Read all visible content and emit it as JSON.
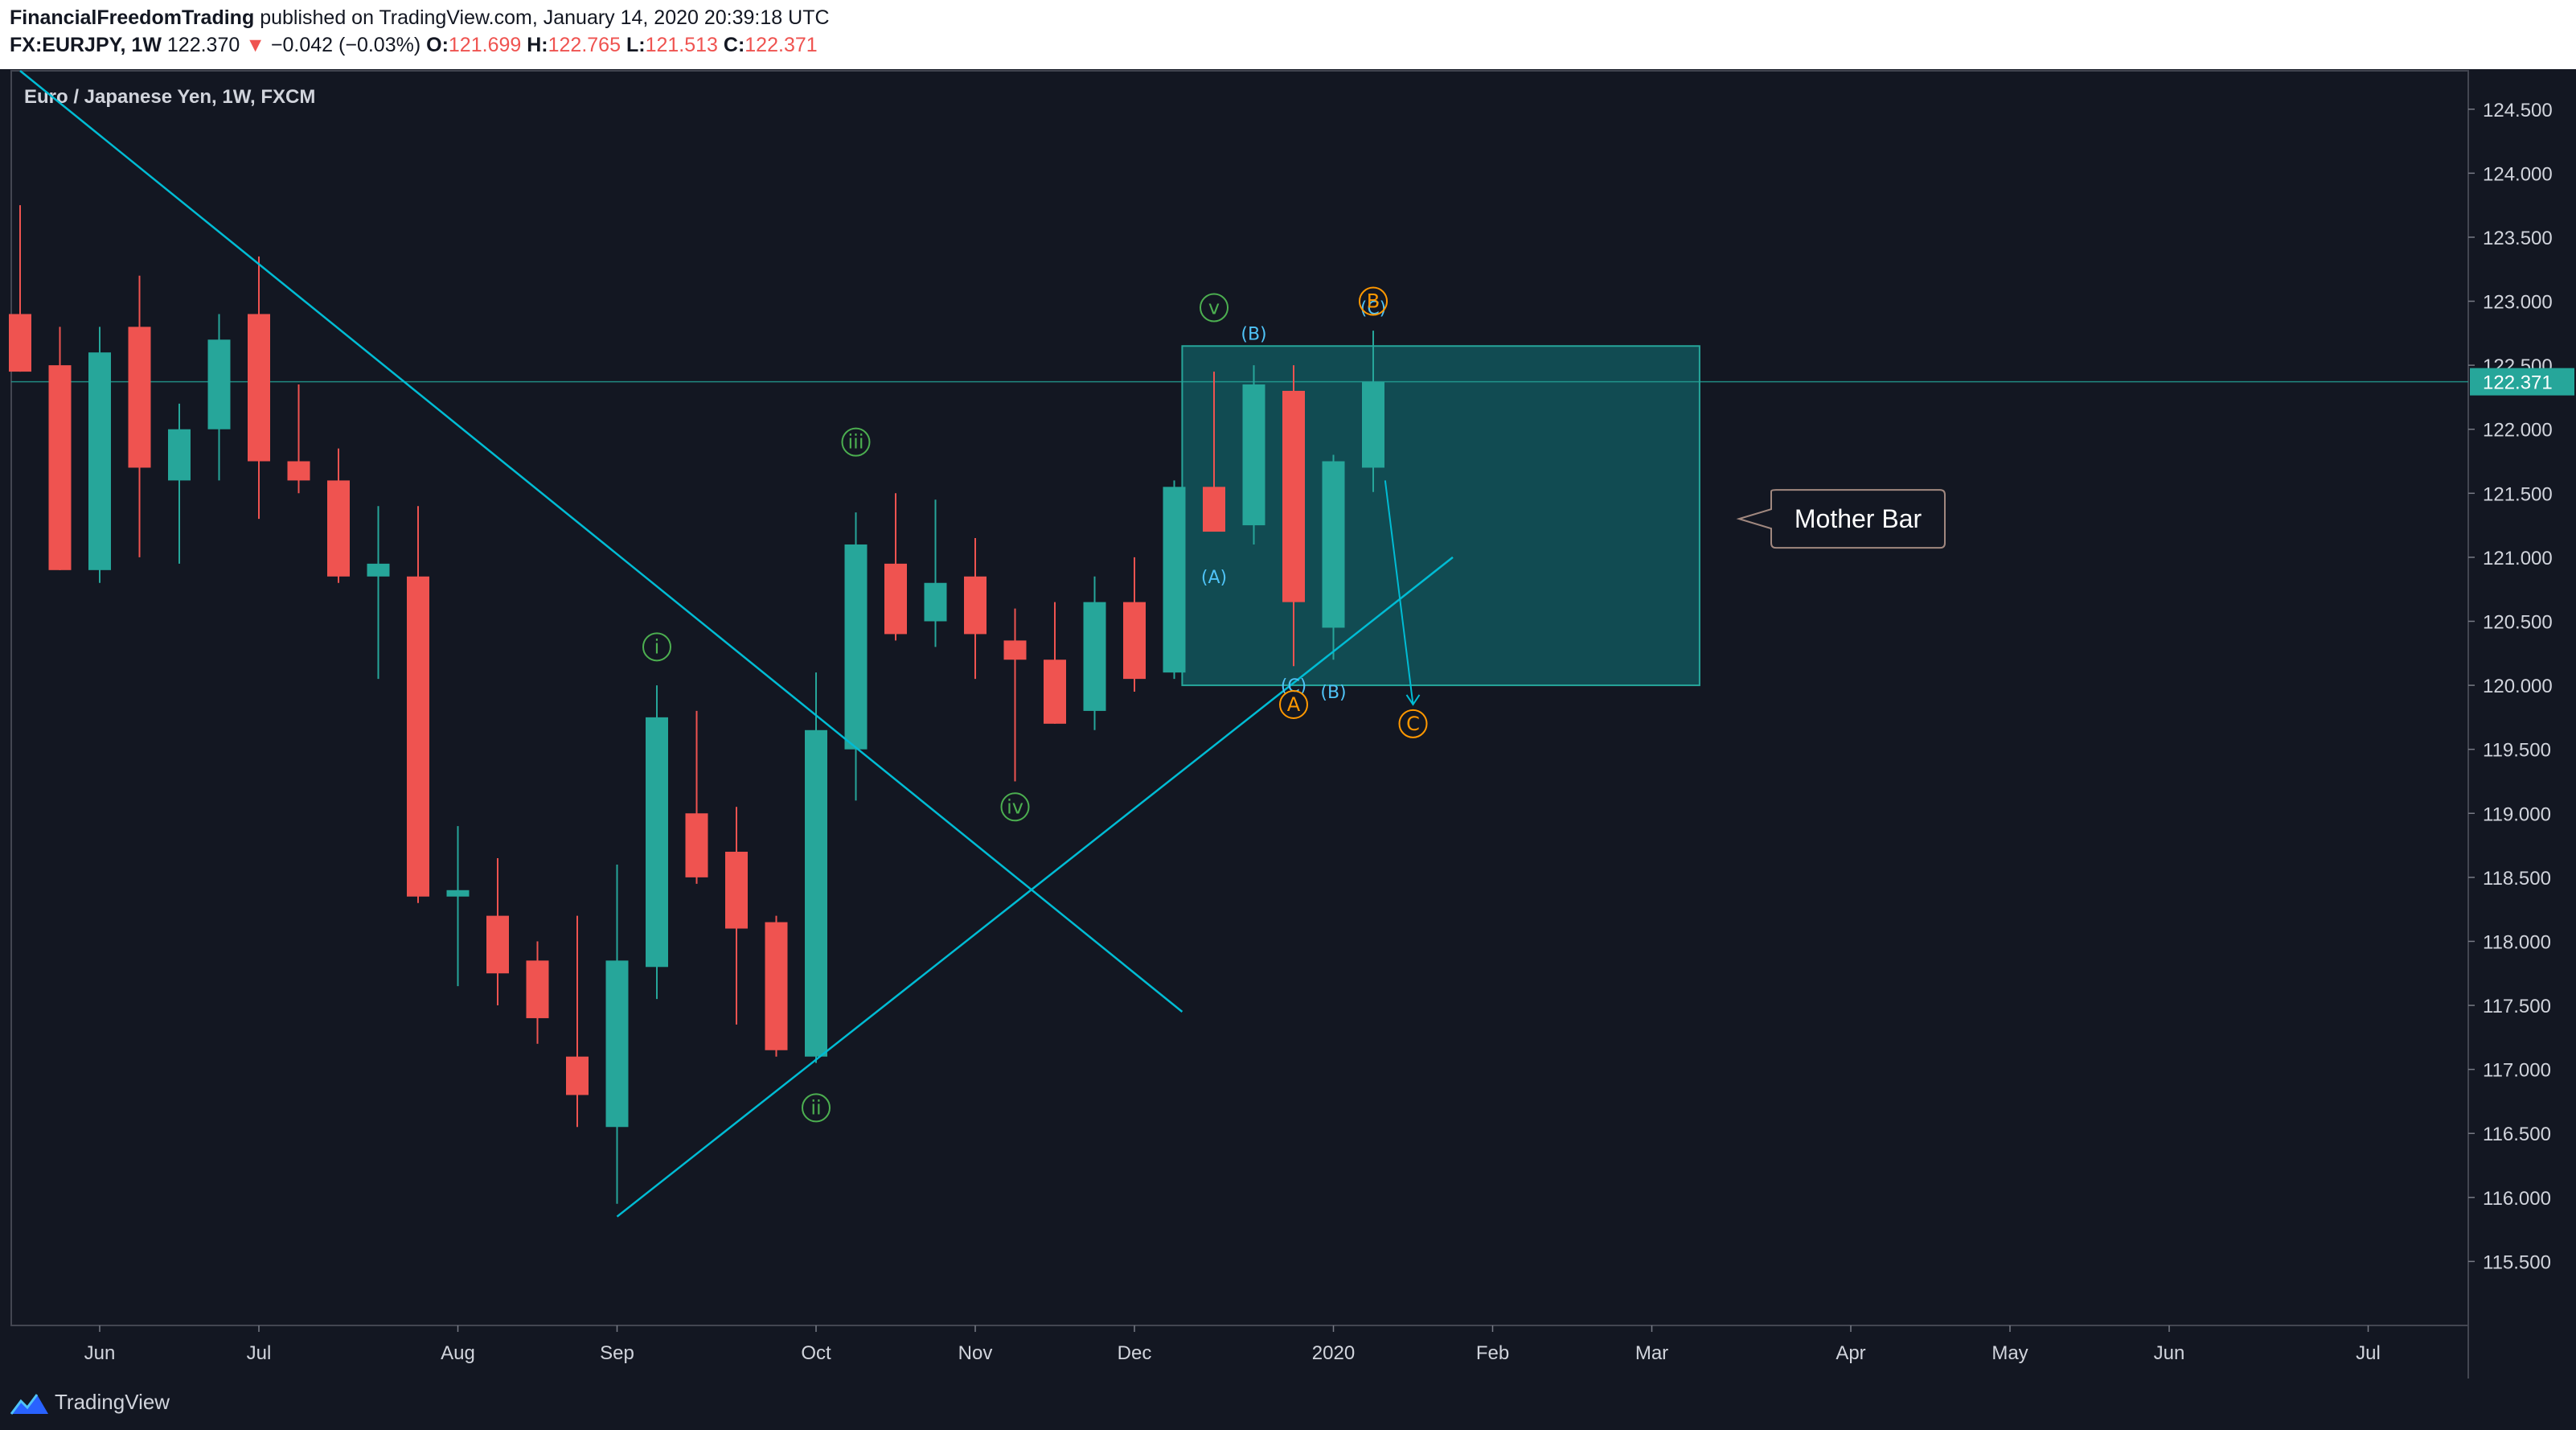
{
  "header": {
    "author": "FinancialFreedomTrading",
    "published": "published on TradingView.com, January 14, 2020 20:39:18 UTC",
    "symbol": "FX:EURJPY, 1W",
    "last": "122.370",
    "change_arrow": "▼",
    "change": "−0.042 (−0.03%)",
    "o_label": "O:",
    "o_value": "121.699",
    "h_label": "H:",
    "h_value": "122.765",
    "l_label": "L:",
    "l_value": "121.513",
    "c_label": "C:",
    "c_value": "122.371"
  },
  "colors": {
    "background": "#131722",
    "up": "#26a69a",
    "down": "#ef5350",
    "trendline": "#00bcd4",
    "wave_green": "#4caf50",
    "wave_blue": "#4fc3f7",
    "wave_orange": "#ff9800",
    "box_fill": "#115e63",
    "box_border": "#26a69a",
    "callout_border": "#a1887f"
  },
  "chart_data": {
    "type": "candlestick",
    "title": "Euro / Japanese Yen, 1W, FXCM",
    "ylim": [
      115.0,
      124.8
    ],
    "y_ticks": [
      "124.500",
      "124.000",
      "123.500",
      "123.000",
      "122.500",
      "122.000",
      "121.500",
      "121.000",
      "120.500",
      "120.000",
      "119.500",
      "119.000",
      "118.500",
      "118.000",
      "117.500",
      "117.000",
      "116.500",
      "116.000",
      "115.500"
    ],
    "x_ticks": [
      {
        "label": "Jun",
        "index": 2
      },
      {
        "label": "Jul",
        "index": 6
      },
      {
        "label": "Aug",
        "index": 11
      },
      {
        "label": "Sep",
        "index": 15
      },
      {
        "label": "Oct",
        "index": 20
      },
      {
        "label": "Nov",
        "index": 24
      },
      {
        "label": "Dec",
        "index": 28
      },
      {
        "label": "2020",
        "index": 33
      },
      {
        "label": "Feb",
        "index": 37
      },
      {
        "label": "Mar",
        "index": 41
      },
      {
        "label": "Apr",
        "index": 46
      },
      {
        "label": "May",
        "index": 50
      },
      {
        "label": "Jun",
        "index": 54
      },
      {
        "label": "Jul",
        "index": 59
      }
    ],
    "candles": [
      {
        "o": 122.9,
        "h": 123.75,
        "l": 122.45,
        "c": 122.45
      },
      {
        "o": 122.5,
        "h": 122.8,
        "l": 120.9,
        "c": 120.9
      },
      {
        "o": 120.9,
        "h": 122.8,
        "l": 120.8,
        "c": 122.6
      },
      {
        "o": 122.8,
        "h": 123.2,
        "l": 121.0,
        "c": 121.7
      },
      {
        "o": 121.6,
        "h": 122.2,
        "l": 120.95,
        "c": 122.0
      },
      {
        "o": 122.0,
        "h": 122.9,
        "l": 121.6,
        "c": 122.7
      },
      {
        "o": 122.9,
        "h": 123.35,
        "l": 121.3,
        "c": 121.75
      },
      {
        "o": 121.75,
        "h": 122.35,
        "l": 121.5,
        "c": 121.6
      },
      {
        "o": 121.6,
        "h": 121.85,
        "l": 120.8,
        "c": 120.85
      },
      {
        "o": 120.85,
        "h": 121.4,
        "l": 120.05,
        "c": 120.95
      },
      {
        "o": 120.85,
        "h": 121.4,
        "l": 118.3,
        "c": 118.35
      },
      {
        "o": 118.35,
        "h": 118.9,
        "l": 117.65,
        "c": 118.4
      },
      {
        "o": 118.2,
        "h": 118.65,
        "l": 117.5,
        "c": 117.75
      },
      {
        "o": 117.85,
        "h": 118.0,
        "l": 117.2,
        "c": 117.4
      },
      {
        "o": 117.1,
        "h": 118.2,
        "l": 116.55,
        "c": 116.8
      },
      {
        "o": 116.55,
        "h": 118.6,
        "l": 115.95,
        "c": 117.85
      },
      {
        "o": 117.8,
        "h": 120.0,
        "l": 117.55,
        "c": 119.75
      },
      {
        "o": 119.0,
        "h": 119.8,
        "l": 118.45,
        "c": 118.5
      },
      {
        "o": 118.7,
        "h": 119.05,
        "l": 117.35,
        "c": 118.1
      },
      {
        "o": 118.15,
        "h": 118.2,
        "l": 117.1,
        "c": 117.15
      },
      {
        "o": 117.1,
        "h": 120.1,
        "l": 117.05,
        "c": 119.65
      },
      {
        "o": 119.5,
        "h": 121.35,
        "l": 119.1,
        "c": 121.1
      },
      {
        "o": 120.95,
        "h": 121.5,
        "l": 120.35,
        "c": 120.4
      },
      {
        "o": 120.5,
        "h": 121.45,
        "l": 120.3,
        "c": 120.8
      },
      {
        "o": 120.85,
        "h": 121.15,
        "l": 120.05,
        "c": 120.4
      },
      {
        "o": 120.35,
        "h": 120.6,
        "l": 119.25,
        "c": 120.2
      },
      {
        "o": 120.2,
        "h": 120.65,
        "l": 119.7,
        "c": 119.7
      },
      {
        "o": 119.8,
        "h": 120.85,
        "l": 119.65,
        "c": 120.65
      },
      {
        "o": 120.65,
        "h": 121.0,
        "l": 119.95,
        "c": 120.05
      },
      {
        "o": 120.1,
        "h": 121.6,
        "l": 120.05,
        "c": 121.55
      },
      {
        "o": 121.55,
        "h": 122.45,
        "l": 121.2,
        "c": 121.2
      },
      {
        "o": 121.25,
        "h": 122.5,
        "l": 121.1,
        "c": 122.35
      },
      {
        "o": 122.3,
        "h": 122.5,
        "l": 120.15,
        "c": 120.65
      },
      {
        "o": 120.45,
        "h": 121.8,
        "l": 120.2,
        "c": 121.75
      },
      {
        "o": 121.7,
        "h": 122.77,
        "l": 121.51,
        "c": 122.37
      }
    ],
    "current_price": {
      "value": 122.371,
      "label": "122.371"
    },
    "wave_labels": [
      {
        "text": "i",
        "index": 16,
        "price": 120.3,
        "color": "wave_green",
        "circle": true
      },
      {
        "text": "ii",
        "index": 20,
        "price": 116.7,
        "color": "wave_green",
        "circle": true
      },
      {
        "text": "iii",
        "index": 21,
        "price": 121.9,
        "color": "wave_green",
        "circle": true
      },
      {
        "text": "iv",
        "index": 25,
        "price": 119.05,
        "color": "wave_green",
        "circle": true
      },
      {
        "text": "v",
        "index": 30,
        "price": 122.95,
        "color": "wave_green",
        "circle": true
      },
      {
        "text": "(A)",
        "index": 30,
        "price": 120.85,
        "color": "wave_blue",
        "circle": false
      },
      {
        "text": "(B)",
        "index": 31,
        "price": 122.75,
        "color": "wave_blue",
        "circle": false
      },
      {
        "text": "(C)",
        "index": 32,
        "price": 120.0,
        "color": "wave_blue",
        "circle": false
      },
      {
        "text": "(B)",
        "index": 33,
        "price": 119.95,
        "color": "wave_blue",
        "circle": false
      },
      {
        "text": "(C)",
        "index": 34,
        "price": 122.95,
        "color": "wave_blue",
        "circle": false
      },
      {
        "text": "A",
        "index": 32,
        "price": 119.85,
        "color": "wave_orange",
        "circle": true
      },
      {
        "text": "B",
        "index": 34,
        "price": 123.0,
        "color": "wave_orange",
        "circle": true
      },
      {
        "text": "C",
        "index": 35,
        "price": 119.7,
        "color": "wave_orange",
        "circle": true
      }
    ],
    "trendlines": [
      {
        "x1": 0,
        "y1": 124.8,
        "x2": 29.2,
        "y2": 117.45
      },
      {
        "x1": 15,
        "y1": 115.85,
        "x2": 36,
        "y2": 121.0
      }
    ],
    "arrow": {
      "x1": 34.3,
      "y1": 121.6,
      "x2": 35,
      "y2": 119.85
    },
    "mother_bar_zone": {
      "x1": 29.2,
      "x2": 42.2,
      "y_low": 120.0,
      "y_high": 122.65
    },
    "callout": {
      "text": "Mother Bar",
      "price": 121.3,
      "index": 44
    }
  },
  "footer": {
    "brand": "TradingView"
  }
}
